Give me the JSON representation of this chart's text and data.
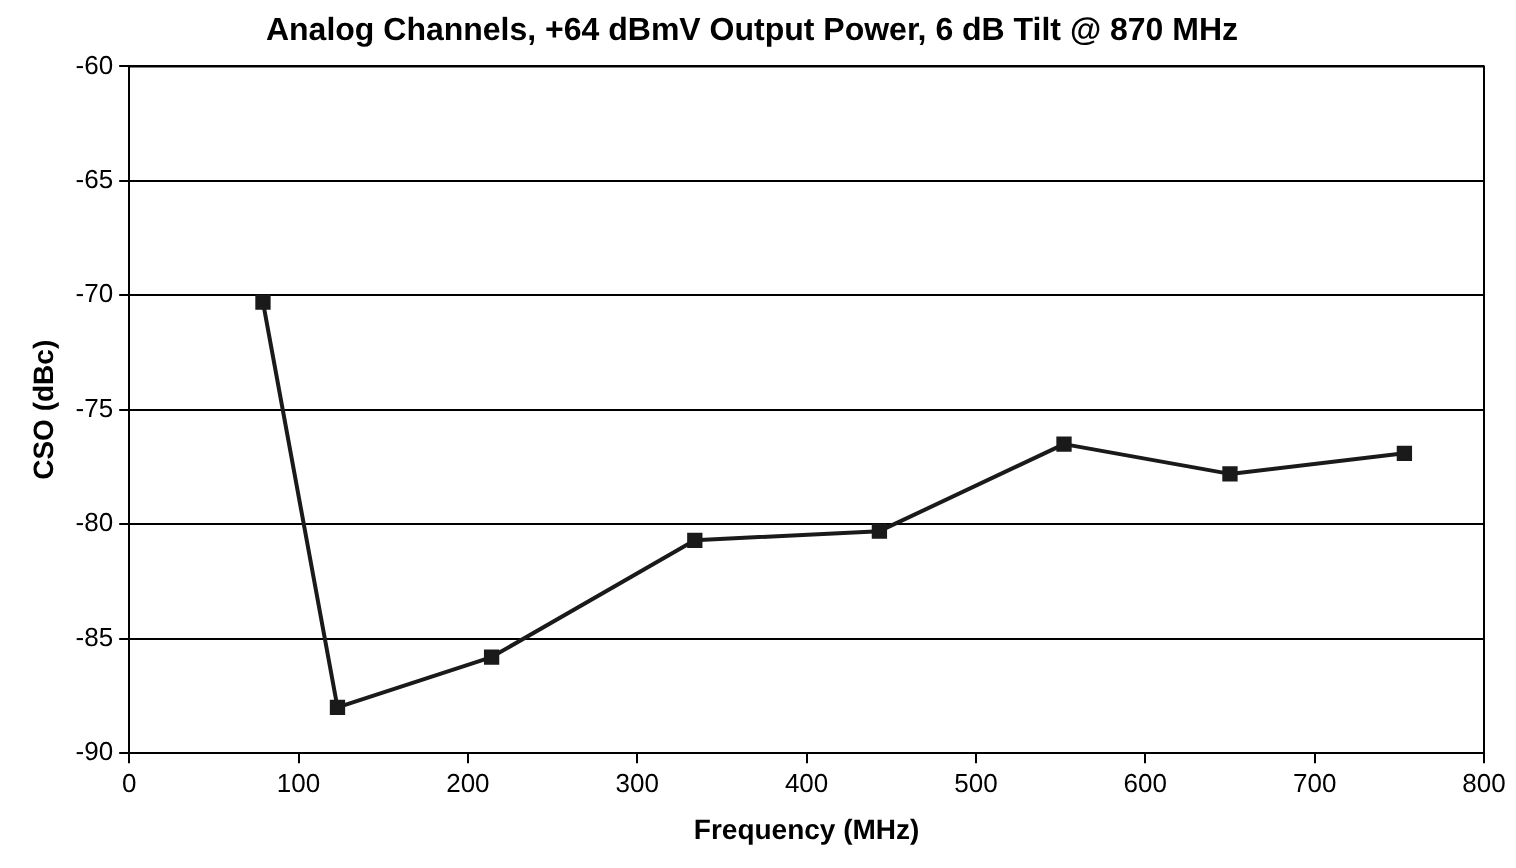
{
  "chart_data": {
    "type": "line",
    "title": "Analog Channels, +64 dBmV Output Power, 6 dB Tilt @ 870 MHz",
    "xlabel": "Frequency (MHz)",
    "ylabel": "CSO (dBc)",
    "x": [
      79,
      123,
      214,
      334,
      443,
      552,
      650,
      753
    ],
    "series": [
      {
        "color": "#1a1a1a",
        "values": [
          -70.3,
          -88.0,
          -85.8,
          -80.7,
          -80.3,
          -76.5,
          -77.8,
          -76.9
        ]
      }
    ],
    "xlim": [
      0,
      800
    ],
    "xticks": [
      0,
      100,
      200,
      300,
      400,
      500,
      600,
      700,
      800
    ],
    "ylim": [
      -90,
      -60
    ],
    "yticks": [
      -90,
      -85,
      -80,
      -75,
      -70,
      -65,
      -60
    ],
    "grid": "y",
    "legend": false,
    "marker": "square",
    "line_style": "solid"
  }
}
